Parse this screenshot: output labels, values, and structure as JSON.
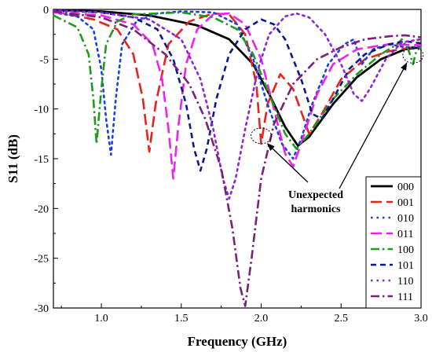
{
  "chart_data": {
    "type": "line",
    "title": "",
    "xlabel": "Frequency (GHz)",
    "ylabel": "S11 (dB)",
    "xlim": [
      0.7,
      3.0
    ],
    "ylim": [
      -30,
      0
    ],
    "x_ticks": [
      "1.0",
      "1.5",
      "2.0",
      "2.5",
      "3.0"
    ],
    "y_ticks": [
      "0",
      "-5",
      "-10",
      "-15",
      "-20",
      "-25",
      "-30"
    ],
    "grid": false,
    "legend_position": "bottom-right",
    "series": [
      {
        "name": "000",
        "color": "#000000",
        "dash": "solid",
        "points": [
          [
            0.7,
            -0.05
          ],
          [
            1.0,
            -0.2
          ],
          [
            1.3,
            -0.6
          ],
          [
            1.6,
            -1.6
          ],
          [
            1.8,
            -3.0
          ],
          [
            1.95,
            -5.5
          ],
          [
            2.05,
            -8.5
          ],
          [
            2.15,
            -11.8
          ],
          [
            2.23,
            -13.7
          ],
          [
            2.3,
            -12.8
          ],
          [
            2.45,
            -9.5
          ],
          [
            2.6,
            -6.8
          ],
          [
            2.75,
            -5.0
          ],
          [
            2.9,
            -4.0
          ],
          [
            3.0,
            -3.8
          ]
        ]
      },
      {
        "name": "001",
        "color": "#e8231c",
        "dash": "long",
        "points": [
          [
            0.7,
            -0.2
          ],
          [
            0.95,
            -1.0
          ],
          [
            1.1,
            -2.0
          ],
          [
            1.2,
            -4.5
          ],
          [
            1.26,
            -9.0
          ],
          [
            1.3,
            -14.3
          ],
          [
            1.34,
            -9.5
          ],
          [
            1.42,
            -3.5
          ],
          [
            1.55,
            -1.2
          ],
          [
            1.7,
            -0.4
          ],
          [
            1.8,
            -0.5
          ],
          [
            1.9,
            -2.5
          ],
          [
            1.97,
            -7.5
          ],
          [
            2.0,
            -13.5
          ],
          [
            2.04,
            -9.5
          ],
          [
            2.12,
            -6.5
          ],
          [
            2.2,
            -8.0
          ],
          [
            2.3,
            -12.5
          ],
          [
            2.38,
            -10.5
          ],
          [
            2.5,
            -7.0
          ],
          [
            2.65,
            -5.0
          ],
          [
            2.8,
            -4.2
          ],
          [
            2.95,
            -3.8
          ],
          [
            3.0,
            -3.8
          ]
        ]
      },
      {
        "name": "010",
        "color": "#1a3fe0",
        "dash": "dot",
        "points": [
          [
            0.7,
            -0.3
          ],
          [
            0.85,
            -0.7
          ],
          [
            0.95,
            -2.0
          ],
          [
            1.0,
            -6.0
          ],
          [
            1.03,
            -11.0
          ],
          [
            1.06,
            -14.6
          ],
          [
            1.09,
            -9.0
          ],
          [
            1.13,
            -3.5
          ],
          [
            1.22,
            -1.2
          ],
          [
            1.35,
            -0.4
          ],
          [
            1.5,
            -0.2
          ],
          [
            1.7,
            -0.3
          ],
          [
            1.85,
            -1.5
          ],
          [
            1.95,
            -5.0
          ],
          [
            2.05,
            -10.0
          ],
          [
            2.13,
            -13.5
          ],
          [
            2.2,
            -15.0
          ],
          [
            2.25,
            -13.0
          ],
          [
            2.32,
            -9.5
          ],
          [
            2.42,
            -5.5
          ],
          [
            2.52,
            -3.5
          ],
          [
            2.58,
            -3.0
          ],
          [
            2.63,
            -5.5
          ],
          [
            2.7,
            -4.0
          ],
          [
            2.8,
            -3.5
          ],
          [
            2.9,
            -3.8
          ],
          [
            3.0,
            -3.8
          ]
        ]
      },
      {
        "name": "011",
        "color": "#ee22ee",
        "dash": "long",
        "points": [
          [
            0.7,
            -0.3
          ],
          [
            1.0,
            -0.6
          ],
          [
            1.2,
            -1.5
          ],
          [
            1.32,
            -3.5
          ],
          [
            1.38,
            -7.0
          ],
          [
            1.42,
            -12.0
          ],
          [
            1.45,
            -17.0
          ],
          [
            1.48,
            -12.0
          ],
          [
            1.53,
            -5.5
          ],
          [
            1.6,
            -2.0
          ],
          [
            1.7,
            -0.5
          ],
          [
            1.8,
            -0.4
          ],
          [
            1.9,
            -1.5
          ],
          [
            2.0,
            -5.0
          ],
          [
            2.08,
            -10.0
          ],
          [
            2.15,
            -14.5
          ],
          [
            2.2,
            -15.8
          ],
          [
            2.26,
            -13.0
          ],
          [
            2.35,
            -8.5
          ],
          [
            2.45,
            -5.5
          ],
          [
            2.6,
            -4.0
          ],
          [
            2.8,
            -3.5
          ],
          [
            3.0,
            -3.6
          ]
        ]
      },
      {
        "name": "100",
        "color": "#1f9a1f",
        "dash": "dashdot",
        "points": [
          [
            0.7,
            -0.6
          ],
          [
            0.85,
            -1.8
          ],
          [
            0.92,
            -4.5
          ],
          [
            0.95,
            -9.0
          ],
          [
            0.97,
            -13.5
          ],
          [
            1.0,
            -8.0
          ],
          [
            1.03,
            -3.5
          ],
          [
            1.1,
            -1.2
          ],
          [
            1.2,
            -0.5
          ],
          [
            1.5,
            -0.3
          ],
          [
            1.7,
            -0.8
          ],
          [
            1.85,
            -2.0
          ],
          [
            1.95,
            -4.5
          ],
          [
            2.05,
            -8.5
          ],
          [
            2.15,
            -12.5
          ],
          [
            2.22,
            -14.0
          ],
          [
            2.3,
            -12.5
          ],
          [
            2.45,
            -9.0
          ],
          [
            2.6,
            -6.5
          ],
          [
            2.75,
            -4.5
          ],
          [
            2.85,
            -3.5
          ],
          [
            2.88,
            -3.0
          ],
          [
            2.92,
            -4.0
          ],
          [
            2.95,
            -5.5
          ],
          [
            2.97,
            -4.2
          ],
          [
            3.0,
            -3.8
          ]
        ]
      },
      {
        "name": "101",
        "color": "#0c1a8a",
        "dash": "dash",
        "points": [
          [
            0.7,
            -0.1
          ],
          [
            1.0,
            -0.3
          ],
          [
            1.2,
            -0.8
          ],
          [
            1.35,
            -2.0
          ],
          [
            1.45,
            -5.0
          ],
          [
            1.53,
            -9.5
          ],
          [
            1.58,
            -14.0
          ],
          [
            1.62,
            -16.2
          ],
          [
            1.66,
            -14.0
          ],
          [
            1.72,
            -9.0
          ],
          [
            1.8,
            -4.5
          ],
          [
            1.9,
            -2.0
          ],
          [
            2.0,
            -1.0
          ],
          [
            2.08,
            -1.5
          ],
          [
            2.15,
            -3.0
          ],
          [
            2.25,
            -7.0
          ],
          [
            2.32,
            -10.5
          ],
          [
            2.38,
            -11.0
          ],
          [
            2.45,
            -9.0
          ],
          [
            2.55,
            -6.0
          ],
          [
            2.65,
            -4.5
          ],
          [
            2.8,
            -3.5
          ],
          [
            2.9,
            -3.2
          ],
          [
            3.0,
            -3.4
          ]
        ]
      },
      {
        "name": "110",
        "color": "#8e24d6",
        "dash": "dot",
        "points": [
          [
            0.7,
            -0.1
          ],
          [
            1.0,
            -0.3
          ],
          [
            1.3,
            -1.0
          ],
          [
            1.5,
            -3.0
          ],
          [
            1.62,
            -7.0
          ],
          [
            1.7,
            -12.0
          ],
          [
            1.76,
            -17.0
          ],
          [
            1.8,
            -19.0
          ],
          [
            1.84,
            -17.0
          ],
          [
            1.9,
            -12.0
          ],
          [
            1.98,
            -6.0
          ],
          [
            2.05,
            -2.5
          ],
          [
            2.15,
            -0.7
          ],
          [
            2.22,
            -0.4
          ],
          [
            2.3,
            -0.8
          ],
          [
            2.4,
            -2.5
          ],
          [
            2.5,
            -5.5
          ],
          [
            2.58,
            -8.5
          ],
          [
            2.63,
            -9.2
          ],
          [
            2.68,
            -8.0
          ],
          [
            2.78,
            -5.0
          ],
          [
            2.88,
            -3.3
          ],
          [
            3.0,
            -3.0
          ]
        ]
      },
      {
        "name": "111",
        "color": "#7a1f7a",
        "dash": "dashdot",
        "points": [
          [
            0.7,
            -0.2
          ],
          [
            1.0,
            -0.8
          ],
          [
            1.2,
            -2.0
          ],
          [
            1.4,
            -4.5
          ],
          [
            1.55,
            -7.5
          ],
          [
            1.65,
            -11.0
          ],
          [
            1.75,
            -16.0
          ],
          [
            1.82,
            -22.0
          ],
          [
            1.87,
            -28.0
          ],
          [
            1.9,
            -29.8
          ],
          [
            1.94,
            -25.0
          ],
          [
            2.0,
            -17.0
          ],
          [
            2.08,
            -11.5
          ],
          [
            2.2,
            -7.5
          ],
          [
            2.35,
            -5.0
          ],
          [
            2.5,
            -3.8
          ],
          [
            2.65,
            -3.0
          ],
          [
            2.8,
            -2.7
          ],
          [
            2.9,
            -2.6
          ],
          [
            3.0,
            -2.8
          ]
        ]
      }
    ],
    "annotation": {
      "lines": [
        "Unexpected",
        "harmonics"
      ],
      "circles": [
        [
          2.0,
          -12.7
        ],
        [
          2.95,
          -4.6
        ]
      ]
    }
  }
}
